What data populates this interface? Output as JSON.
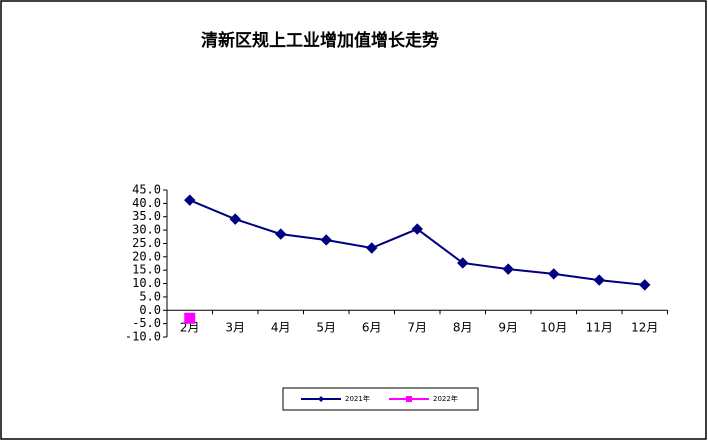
{
  "chart_data": {
    "type": "line",
    "title": "清新区规上工业增加值增长走势",
    "categories": [
      "2月",
      "3月",
      "4月",
      "5月",
      "6月",
      "7月",
      "8月",
      "9月",
      "10月",
      "11月",
      "12月"
    ],
    "series": [
      {
        "name": "2021年",
        "color": "#000080",
        "marker": "diamond",
        "values": [
          41.2,
          34.1,
          28.5,
          26.3,
          23.3,
          30.4,
          17.7,
          15.4,
          13.6,
          11.3,
          9.5
        ]
      },
      {
        "name": "2022年",
        "color": "#ff00ff",
        "marker": "square",
        "values": [
          -3.0,
          null,
          null,
          null,
          null,
          null,
          null,
          null,
          null,
          null,
          null
        ]
      }
    ],
    "ylim": [
      -10,
      45
    ],
    "yticks": [
      {
        "value": -10,
        "label": "-10.0"
      },
      {
        "value": -5,
        "label": "-5.0"
      },
      {
        "value": 0,
        "label": "0.0"
      },
      {
        "value": 5,
        "label": "5.0"
      },
      {
        "value": 10,
        "label": "10.0"
      },
      {
        "value": 15,
        "label": "15.0"
      },
      {
        "value": 20,
        "label": "20.0"
      },
      {
        "value": 25,
        "label": "25.0"
      },
      {
        "value": 30,
        "label": "30.0"
      },
      {
        "value": 35,
        "label": "35.0"
      },
      {
        "value": 40,
        "label": "40.0"
      },
      {
        "value": 45,
        "label": "45.0"
      }
    ],
    "legend": "bottom"
  }
}
